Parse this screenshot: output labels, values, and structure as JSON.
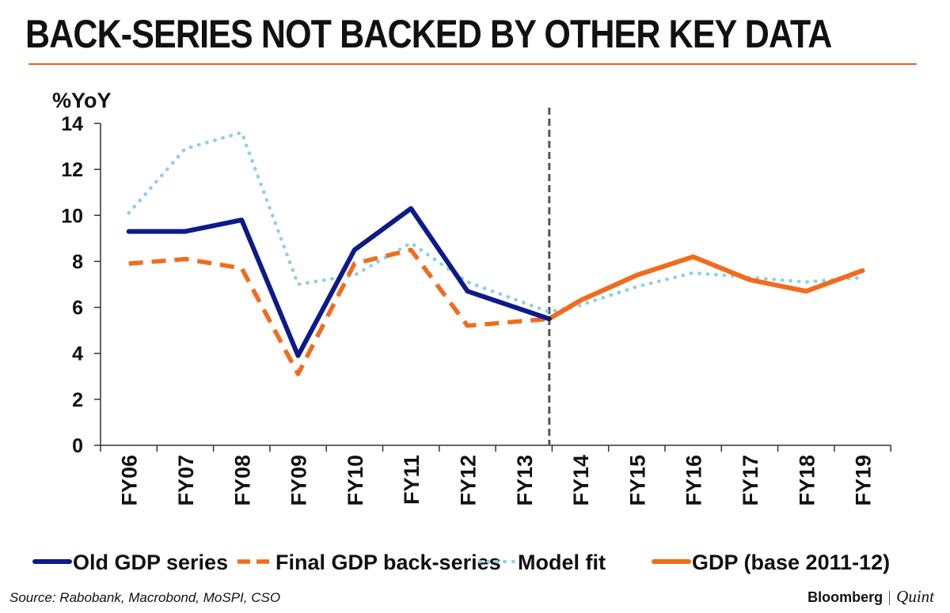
{
  "title": "BACK-SERIES NOT BACKED BY OTHER KEY DATA",
  "source": "Source: Rabobank, Macrobond, MoSPI, CSO",
  "brand": {
    "primary": "Bloomberg",
    "secondary": "Quint"
  },
  "colors": {
    "accent": "#e8641b",
    "old": "#0d1a8a",
    "back": "#f26b1d",
    "model": "#8fd0e6",
    "gdp": "#f26b1d",
    "divider": "#555555"
  },
  "chart_data": {
    "type": "line",
    "ylabel": "%YoY",
    "xlabel": "",
    "ylim": [
      0,
      14
    ],
    "yticks": [
      0,
      2,
      4,
      6,
      8,
      10,
      12,
      14
    ],
    "grid": false,
    "categories": [
      "FY06",
      "FY07",
      "FY08",
      "FY09",
      "FY10",
      "FY11",
      "FY12",
      "FY13",
      "FY14",
      "FY15",
      "FY16",
      "FY17",
      "FY18",
      "FY19"
    ],
    "divider_between": [
      "FY13",
      "FY14"
    ],
    "legend_position": "bottom",
    "series": [
      {
        "name": "Old GDP series",
        "style": "solid-thick",
        "color": "#0d1a8a",
        "points": [
          [
            0,
            9.3
          ],
          [
            1,
            9.3
          ],
          [
            2,
            9.8
          ],
          [
            3,
            3.9
          ],
          [
            4,
            8.5
          ],
          [
            5,
            10.3
          ],
          [
            6,
            6.7
          ],
          [
            7.45,
            5.5
          ]
        ]
      },
      {
        "name": "Final GDP back-series",
        "style": "dashed",
        "color": "#f26b1d",
        "points": [
          [
            0,
            7.9
          ],
          [
            1,
            8.1
          ],
          [
            2,
            7.7
          ],
          [
            3,
            3.1
          ],
          [
            4,
            7.9
          ],
          [
            5,
            8.5
          ],
          [
            6,
            5.2
          ],
          [
            7.45,
            5.5
          ]
        ]
      },
      {
        "name": "Model fit",
        "style": "dotted",
        "color": "#8fd0e6",
        "points": [
          [
            0,
            10.1
          ],
          [
            1,
            12.9
          ],
          [
            2,
            13.6
          ],
          [
            3,
            7.0
          ],
          [
            4,
            7.4
          ],
          [
            5,
            8.8
          ],
          [
            6,
            7.1
          ],
          [
            7.45,
            5.8
          ],
          [
            8,
            6.1
          ],
          [
            9,
            6.9
          ],
          [
            10,
            7.5
          ],
          [
            11,
            7.3
          ],
          [
            12,
            7.1
          ],
          [
            13,
            7.3
          ]
        ]
      },
      {
        "name": "GDP (base 2011-12)",
        "style": "solid-thick",
        "color": "#f26b1d",
        "points": [
          [
            7.45,
            5.5
          ],
          [
            8,
            6.3
          ],
          [
            9,
            7.4
          ],
          [
            10,
            8.2
          ],
          [
            11,
            7.2
          ],
          [
            12,
            6.7
          ],
          [
            13,
            7.6
          ]
        ]
      }
    ]
  }
}
